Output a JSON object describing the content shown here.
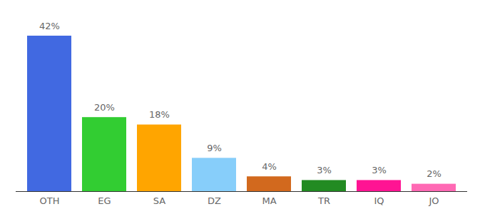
{
  "chart_data": {
    "type": "bar",
    "categories": [
      "OTH",
      "EG",
      "SA",
      "DZ",
      "MA",
      "TR",
      "IQ",
      "JO"
    ],
    "values": [
      42,
      20,
      18,
      9,
      4,
      3,
      3,
      2
    ],
    "value_labels": [
      "42%",
      "20%",
      "18%",
      "9%",
      "4%",
      "3%",
      "3%",
      "2%"
    ],
    "colors": [
      "#4169e1",
      "#32cd32",
      "#ffa500",
      "#87cefa",
      "#d2691e",
      "#228b22",
      "#ff1493",
      "#ff69b4"
    ],
    "ylim": [
      0,
      42
    ],
    "data_labels": true,
    "tick_labels": "x"
  }
}
